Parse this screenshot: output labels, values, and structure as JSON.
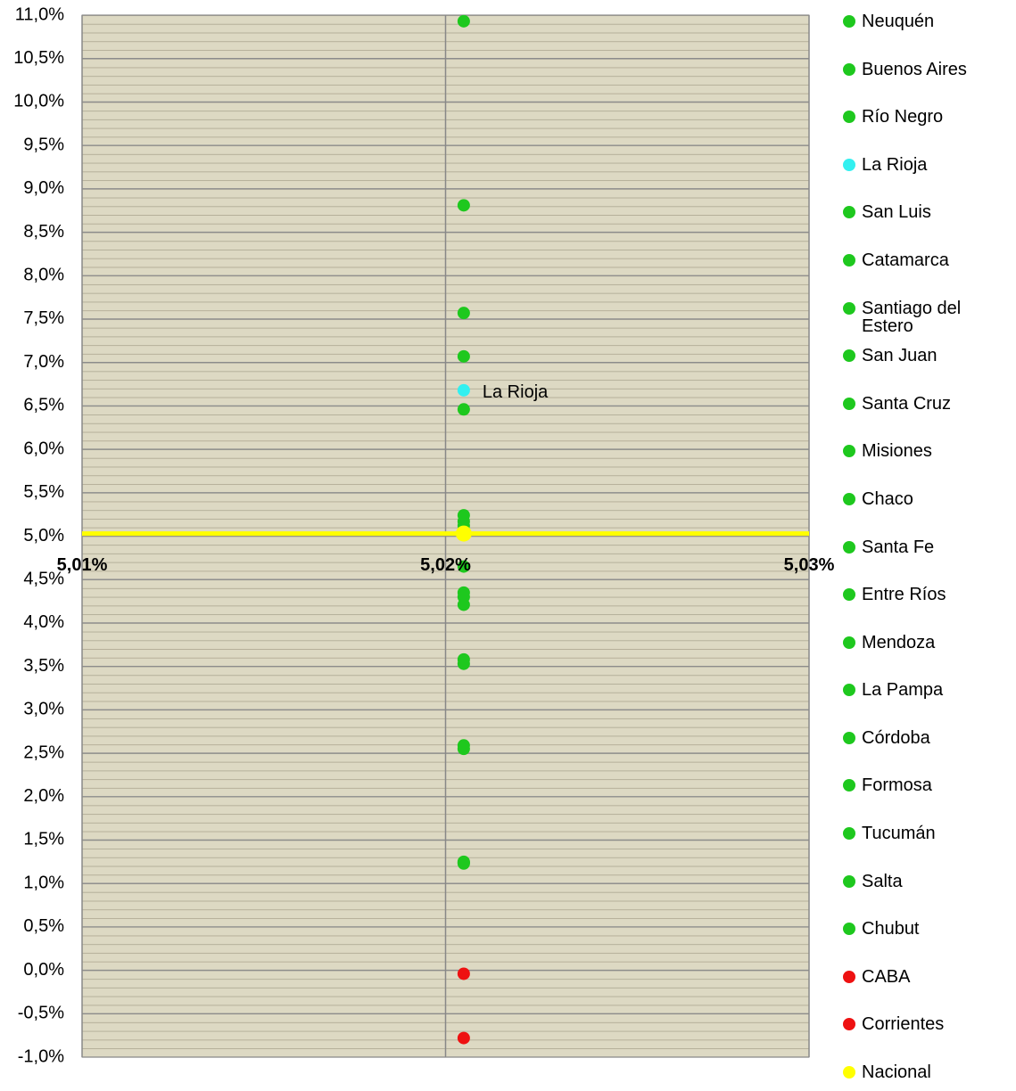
{
  "chart_data": {
    "type": "scatter",
    "xlim": [
      5.01,
      5.03
    ],
    "xticks": [
      {
        "value": 5.01,
        "label": "5,01%"
      },
      {
        "value": 5.02,
        "label": "5,02%"
      },
      {
        "value": 5.03,
        "label": "5,03%"
      }
    ],
    "ylim": [
      -1,
      11
    ],
    "yticks": [
      {
        "value": -1,
        "label": "-1,0%"
      },
      {
        "value": -0.5,
        "label": "-0,5%"
      },
      {
        "value": 0,
        "label": "0,0%"
      },
      {
        "value": 0.5,
        "label": "0,5%"
      },
      {
        "value": 1,
        "label": "1,0%"
      },
      {
        "value": 1.5,
        "label": "1,5%"
      },
      {
        "value": 2,
        "label": "2,0%"
      },
      {
        "value": 2.5,
        "label": "2,5%"
      },
      {
        "value": 3,
        "label": "3,0%"
      },
      {
        "value": 3.5,
        "label": "3,5%"
      },
      {
        "value": 4,
        "label": "4,0%"
      },
      {
        "value": 4.5,
        "label": "4,5%"
      },
      {
        "value": 5,
        "label": "5,0%"
      },
      {
        "value": 5.5,
        "label": "5,5%"
      },
      {
        "value": 6,
        "label": "6,0%"
      },
      {
        "value": 6.5,
        "label": "6,5%"
      },
      {
        "value": 7,
        "label": "7,0%"
      },
      {
        "value": 7.5,
        "label": "7,5%"
      },
      {
        "value": 8,
        "label": "8,0%"
      },
      {
        "value": 8.5,
        "label": "8,5%"
      },
      {
        "value": 9,
        "label": "9,0%"
      },
      {
        "value": 9.5,
        "label": "9,5%"
      },
      {
        "value": 10,
        "label": "10,0%"
      },
      {
        "value": 10.5,
        "label": "10,5%"
      },
      {
        "value": 11,
        "label": "11,0%"
      }
    ],
    "grid": true,
    "series": [
      {
        "name": "Neuquén",
        "color": "#1ec81e",
        "x": [
          5.0205
        ],
        "values": [
          10.93
        ]
      },
      {
        "name": "Buenos Aires",
        "color": "#1ec81e",
        "x": [
          5.0205
        ],
        "values": [
          8.81
        ]
      },
      {
        "name": "Río Negro",
        "color": "#1ec81e",
        "x": [
          5.0205
        ],
        "values": [
          7.57
        ]
      },
      {
        "name": "La Rioja",
        "color": "#33f0f0",
        "x": [
          5.0205
        ],
        "values": [
          6.68
        ]
      },
      {
        "name": "San Luis",
        "color": "#1ec81e",
        "x": [
          5.0205
        ],
        "values": [
          7.07
        ]
      },
      {
        "name": "Catamarca",
        "color": "#1ec81e",
        "x": [
          5.0205
        ],
        "values": [
          6.46
        ]
      },
      {
        "name": "Santiago del Estero",
        "color": "#1ec81e",
        "x": [
          5.0205
        ],
        "values": [
          5.24
        ]
      },
      {
        "name": "San Juan",
        "color": "#1ec81e",
        "x": [
          5.0205
        ],
        "values": [
          5.17
        ]
      },
      {
        "name": "Santa Cruz",
        "color": "#1ec81e",
        "x": [
          5.0205
        ],
        "values": [
          5.12
        ]
      },
      {
        "name": "Misiones",
        "color": "#1ec81e",
        "x": [
          5.0205
        ],
        "values": [
          4.65
        ]
      },
      {
        "name": "Chaco",
        "color": "#1ec81e",
        "x": [
          5.0205
        ],
        "values": [
          4.35
        ]
      },
      {
        "name": "Santa Fe",
        "color": "#1ec81e",
        "x": [
          5.0205
        ],
        "values": [
          4.3
        ]
      },
      {
        "name": "Entre Ríos",
        "color": "#1ec81e",
        "x": [
          5.0205
        ],
        "values": [
          4.21
        ]
      },
      {
        "name": "Mendoza",
        "color": "#1ec81e",
        "x": [
          5.0205
        ],
        "values": [
          3.58
        ]
      },
      {
        "name": "La Pampa",
        "color": "#1ec81e",
        "x": [
          5.0205
        ],
        "values": [
          3.53
        ]
      },
      {
        "name": "Córdoba",
        "color": "#1ec81e",
        "x": [
          5.0205
        ],
        "values": [
          2.59
        ]
      },
      {
        "name": "Formosa",
        "color": "#1ec81e",
        "x": [
          5.0205
        ],
        "values": [
          2.55
        ]
      },
      {
        "name": "Tucumán",
        "color": "#1ec81e",
        "x": [
          5.0205
        ],
        "values": [
          1.25
        ]
      },
      {
        "name": "Salta",
        "color": "#1ec81e",
        "x": [
          5.0205
        ],
        "values": [
          1.24
        ]
      },
      {
        "name": "Chubut",
        "color": "#1ec81e",
        "x": [
          5.0205
        ],
        "values": [
          1.23
        ]
      },
      {
        "name": "CABA",
        "color": "#ee1111",
        "x": [
          5.0205
        ],
        "values": [
          -0.04
        ]
      },
      {
        "name": "Corrientes",
        "color": "#ee1111",
        "x": [
          5.0205
        ],
        "values": [
          -0.78
        ]
      },
      {
        "name": "Nacional",
        "color": "#ffff00",
        "x": [
          5.0205
        ],
        "values": [
          5.03
        ]
      }
    ]
  }
}
